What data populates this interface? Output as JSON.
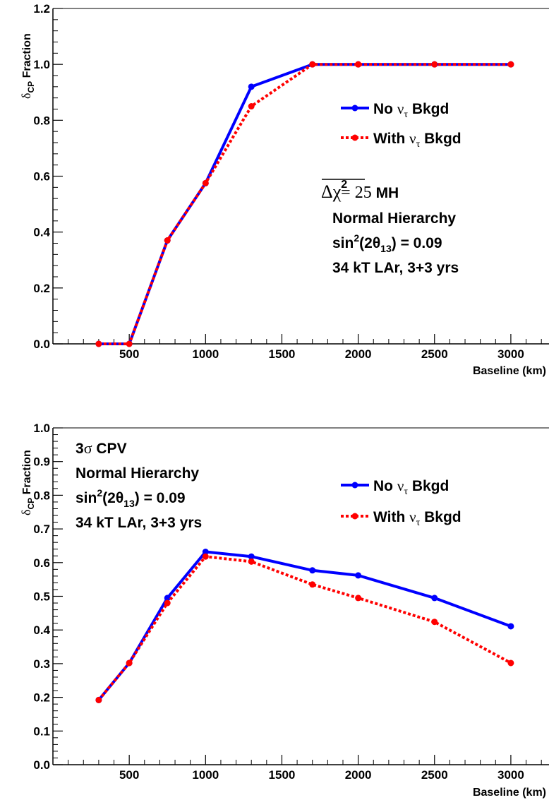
{
  "chart_data": [
    {
      "type": "line",
      "xlabel": "Baseline (km)",
      "ylabel": "δCP Fraction",
      "xlim": [
        0,
        3250
      ],
      "ylim": [
        0,
        1.2
      ],
      "x": [
        300,
        500,
        750,
        1000,
        1300,
        1700,
        2000,
        2500,
        3000
      ],
      "series": [
        {
          "name": "No ντ Bkgd",
          "values": [
            0,
            0,
            0.37,
            0.575,
            0.92,
            1.0,
            1.0,
            1.0,
            1.0
          ],
          "color": "#0000ff",
          "style": "solid"
        },
        {
          "name": "With ντ Bkgd",
          "values": [
            0,
            0,
            0.37,
            0.575,
            0.85,
            1.0,
            1.0,
            1.0,
            1.0
          ],
          "color": "#ff0000",
          "style": "dotted"
        }
      ],
      "xticks": [
        "500",
        "1000",
        "1500",
        "2000",
        "2500",
        "3000"
      ],
      "yticks": [
        "0.0",
        "0.2",
        "0.4",
        "0.6",
        "0.8",
        "1.0",
        "1.2"
      ],
      "legend": [
        {
          "prefix": "No",
          "nu": "ν",
          "sub": "τ",
          "suffix": "Bkgd"
        },
        {
          "prefix": "With",
          "nu": "ν",
          "sub": "τ",
          "suffix": "Bkgd"
        }
      ],
      "annotations": {
        "chi_symbol": "Δχ",
        "chi_power": "2",
        "chi_value": "= 25",
        "chi_tag": "MH",
        "line1": "Normal Hierarchy",
        "line2": "sin",
        "line2_sup": "2",
        "line2_mid": "(2θ",
        "line2_sub": "13",
        "line2_end": ") = 0.09",
        "line3": "34 kT LAr, 3+3 yrs"
      }
    },
    {
      "type": "line",
      "xlabel": "Baseline (km)",
      "ylabel": "δCP Fraction",
      "xlim": [
        0,
        3250
      ],
      "ylim": [
        0,
        1.0
      ],
      "x": [
        300,
        500,
        750,
        1000,
        1300,
        1700,
        2000,
        2500,
        3000
      ],
      "series": [
        {
          "name": "No ντ Bkgd",
          "values": [
            0.192,
            0.302,
            0.495,
            0.632,
            0.618,
            0.577,
            0.562,
            0.495,
            0.411
          ],
          "color": "#0000ff",
          "style": "solid"
        },
        {
          "name": "With ντ Bkgd",
          "values": [
            0.192,
            0.302,
            0.48,
            0.618,
            0.603,
            0.535,
            0.495,
            0.424,
            0.302
          ],
          "color": "#ff0000",
          "style": "dotted"
        }
      ],
      "xticks": [
        "500",
        "1000",
        "1500",
        "2000",
        "2500",
        "3000"
      ],
      "yticks": [
        "0.0",
        "0.1",
        "0.2",
        "0.3",
        "0.4",
        "0.5",
        "0.6",
        "0.7",
        "0.8",
        "0.9",
        "1.0"
      ],
      "legend": [
        {
          "prefix": "No",
          "nu": "ν",
          "sub": "τ",
          "suffix": "Bkgd"
        },
        {
          "prefix": "With",
          "nu": "ν",
          "sub": "τ",
          "suffix": "Bkgd"
        }
      ],
      "annotations": {
        "cpv_num": "3",
        "cpv_sigma": "σ",
        "cpv_text": "CPV",
        "line1": "Normal Hierarchy",
        "line2": "sin",
        "line2_sup": "2",
        "line2_mid": "(2θ",
        "line2_sub": "13",
        "line2_end": ") = 0.09",
        "line3": "34 kT LAr, 3+3 yrs"
      }
    }
  ]
}
